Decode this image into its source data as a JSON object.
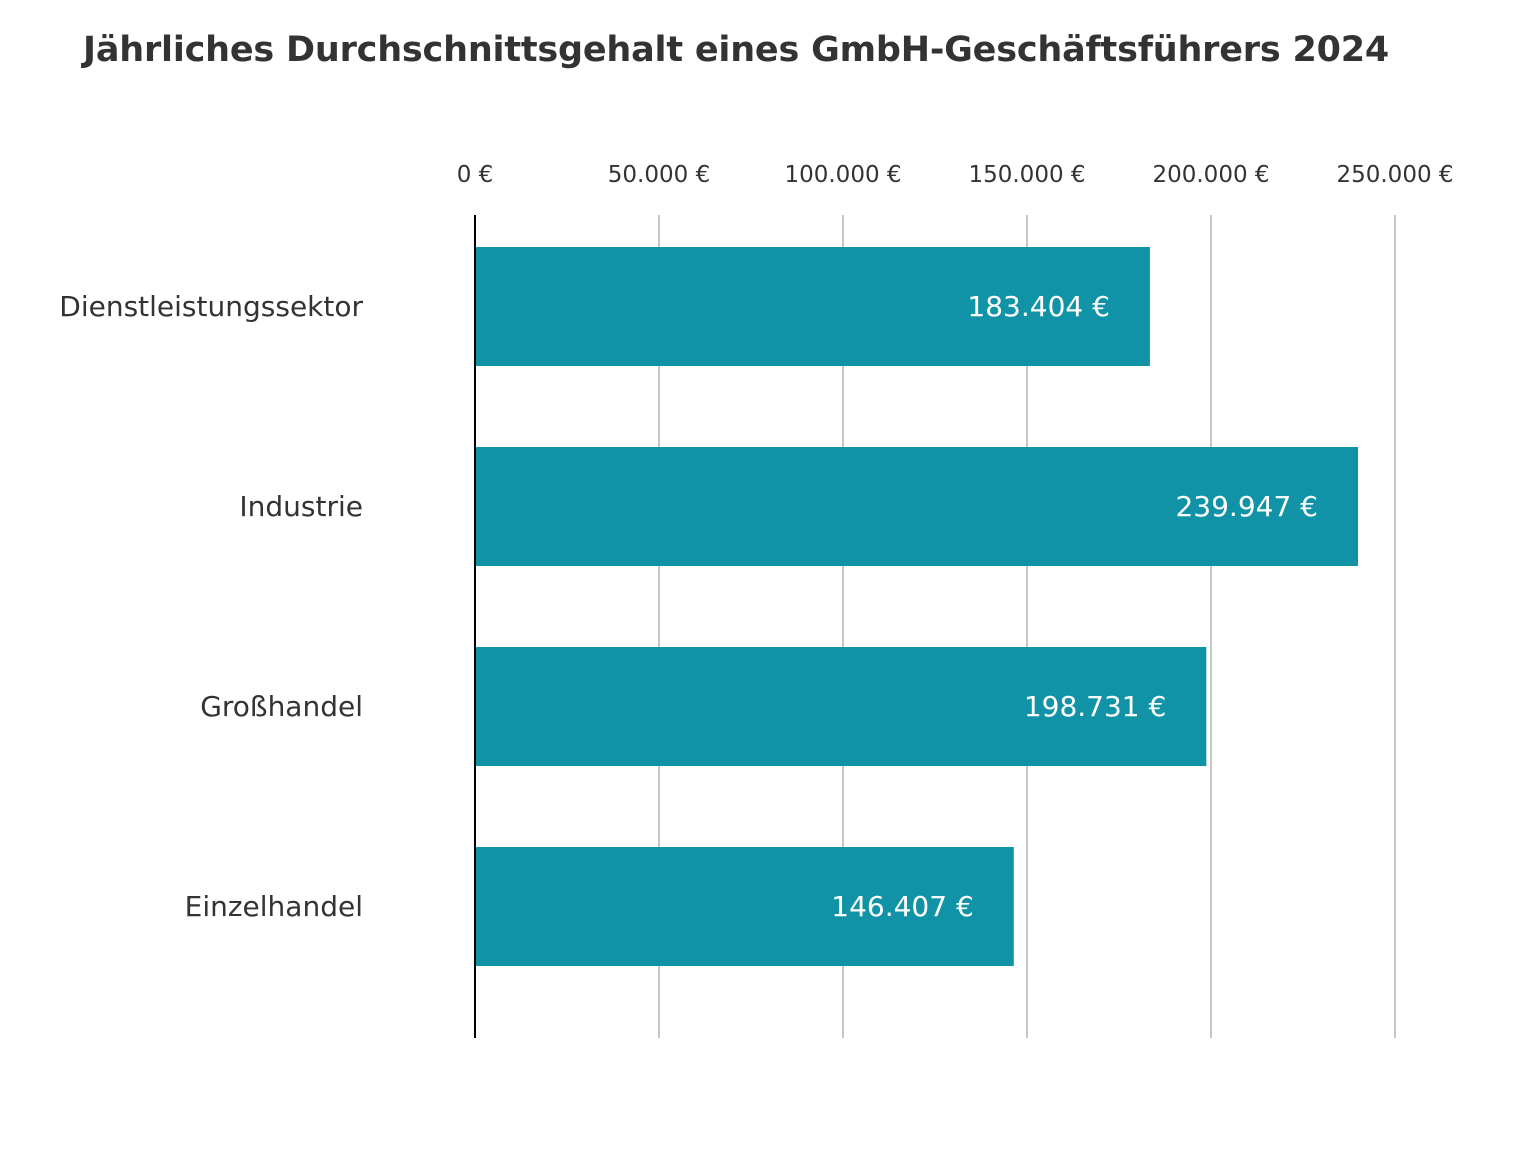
{
  "chart_data": {
    "type": "bar",
    "orientation": "horizontal",
    "title": "Jährliches Durchschnittsgehalt eines GmbH-Geschäftsführers 2024",
    "categories": [
      "Dienstleistungssektor",
      "Industrie",
      "Großhandel",
      "Einzelhandel"
    ],
    "values": [
      183404,
      239947,
      198731,
      146407
    ],
    "value_labels": [
      "183.404 €",
      "239.947 €",
      "198.731 €",
      "146.407 €"
    ],
    "x_ticks": [
      0,
      50000,
      100000,
      150000,
      200000,
      250000
    ],
    "x_tick_labels": [
      "0 €",
      "50.000 €",
      "100.000 €",
      "150.000 €",
      "200.000 €",
      "250.000 €"
    ],
    "xlim": [
      0,
      250000
    ],
    "xlabel": "",
    "ylabel": "",
    "axis_position": "top",
    "grid": true,
    "legend": "none",
    "bar_color": "#1193a7",
    "grid_color": "#b3b3b3",
    "axis_color": "#000000",
    "text_color": "#333333",
    "value_label_color": "#ffffff"
  }
}
